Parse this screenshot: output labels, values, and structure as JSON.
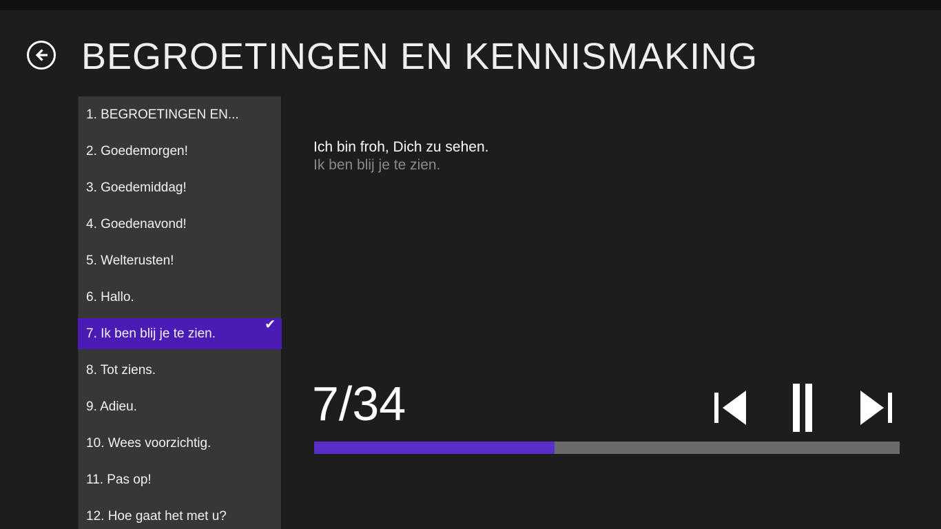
{
  "header": {
    "title": "BEGROETINGEN EN KENNISMAKING",
    "back_icon": "back-arrow"
  },
  "sidebar": {
    "check_glyph": "✔",
    "items": [
      {
        "label": "1. BEGROETINGEN EN...",
        "selected": false
      },
      {
        "label": "2. Goedemorgen!",
        "selected": false
      },
      {
        "label": "3. Goedemiddag!",
        "selected": false
      },
      {
        "label": "4. Goedenavond!",
        "selected": false
      },
      {
        "label": "5. Welterusten!",
        "selected": false
      },
      {
        "label": "6. Hallo.",
        "selected": false
      },
      {
        "label": "7. Ik ben blij je te zien.",
        "selected": true
      },
      {
        "label": "8. Tot ziens.",
        "selected": false
      },
      {
        "label": "9. Adieu.",
        "selected": false
      },
      {
        "label": "10. Wees voorzichtig.",
        "selected": false
      },
      {
        "label": "11. Pas op!",
        "selected": false
      },
      {
        "label": "12. Hoe gaat het met u?",
        "selected": false
      }
    ]
  },
  "content": {
    "phrase_german": "Ich bin froh, Dich zu sehen.",
    "phrase_dutch": "Ik ben blij je te zien."
  },
  "player": {
    "counter": "7/34",
    "progress_percent": 41,
    "controls": {
      "previous": "previous-track",
      "pause": "pause",
      "next": "next-track"
    }
  },
  "colors": {
    "page_bg": "#1d1d1d",
    "sidebar_bg": "#373737",
    "selection_purple": "#4a1bb5",
    "progress_purple": "#5a2fc8",
    "progress_track": "#6b6b6b",
    "muted_text": "#8a8a8a"
  }
}
